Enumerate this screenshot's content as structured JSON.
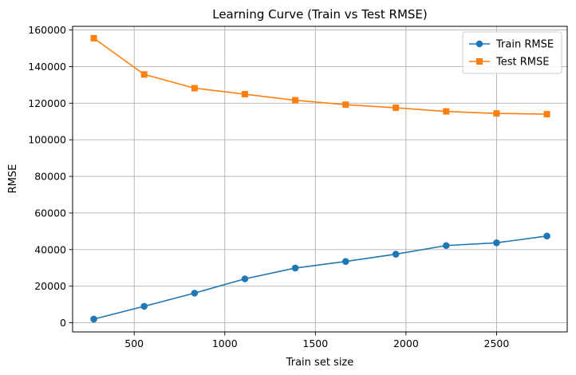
{
  "chart_data": {
    "type": "line",
    "title": "Learning Curve (Train vs Test RMSE)",
    "xlabel": "Train set size",
    "ylabel": "RMSE",
    "xlim": [
      160,
      2890
    ],
    "ylim": [
      -5000,
      162000
    ],
    "xticks": [
      500,
      1000,
      1500,
      2000,
      2500
    ],
    "yticks": [
      0,
      20000,
      40000,
      60000,
      80000,
      100000,
      120000,
      140000,
      160000
    ],
    "grid": true,
    "legend_position": "top-right",
    "x": [
      277,
      555,
      833,
      1111,
      1389,
      1667,
      1944,
      2222,
      2500,
      2778
    ],
    "series": [
      {
        "name": "Train RMSE",
        "marker": "circle",
        "color": "#1f77b4",
        "values": [
          2000,
          9000,
          16200,
          24000,
          29900,
          33500,
          37500,
          42200,
          43700,
          47400
        ]
      },
      {
        "name": "Test RMSE",
        "marker": "square",
        "color": "#ff7f0e",
        "values": [
          155500,
          135700,
          128200,
          124900,
          121600,
          119200,
          117500,
          115500,
          114400,
          114000
        ]
      }
    ]
  }
}
